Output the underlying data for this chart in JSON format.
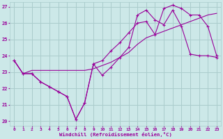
{
  "xlabel": "Windchill (Refroidissement éolien,°C)",
  "bg_color": "#cce8e8",
  "grid_color": "#aacccc",
  "line_color": "#990099",
  "xlim": [
    -0.5,
    23.5
  ],
  "ylim": [
    19.7,
    27.3
  ],
  "yticks": [
    20,
    21,
    22,
    23,
    24,
    25,
    26,
    27
  ],
  "xticks": [
    0,
    1,
    2,
    3,
    4,
    5,
    6,
    7,
    8,
    9,
    10,
    11,
    12,
    13,
    14,
    15,
    16,
    17,
    18,
    19,
    20,
    21,
    22,
    23
  ],
  "curve1_x": [
    0,
    1,
    2,
    3,
    4,
    5,
    6,
    7,
    8,
    9,
    10,
    11,
    12,
    13,
    14,
    15,
    16,
    17,
    18,
    19,
    20,
    21,
    22,
    23
  ],
  "curve1_y": [
    23.7,
    22.9,
    22.9,
    22.4,
    22.1,
    21.8,
    21.5,
    20.1,
    21.1,
    23.5,
    22.8,
    23.3,
    23.9,
    24.5,
    26.5,
    26.8,
    26.2,
    25.9,
    26.8,
    25.8,
    24.1,
    24.0,
    24.0,
    23.9
  ],
  "curve2_x": [
    0,
    1,
    2,
    3,
    4,
    5,
    6,
    7,
    8,
    9,
    10,
    11,
    12,
    13,
    14,
    15,
    16,
    17,
    18,
    19,
    20,
    21,
    22,
    23
  ],
  "curve2_y": [
    23.7,
    22.9,
    23.1,
    23.1,
    23.1,
    23.1,
    23.1,
    23.1,
    23.1,
    23.2,
    23.4,
    23.6,
    23.9,
    24.2,
    24.7,
    25.1,
    25.3,
    25.5,
    25.7,
    25.9,
    26.1,
    26.3,
    26.5,
    26.6
  ],
  "curve3_x": [
    0,
    1,
    2,
    3,
    4,
    5,
    6,
    7,
    8,
    9,
    10,
    11,
    12,
    13,
    14,
    15,
    16,
    17,
    18,
    19,
    20,
    21,
    22,
    23
  ],
  "curve3_y": [
    23.7,
    22.9,
    22.9,
    22.4,
    22.1,
    21.8,
    21.5,
    20.1,
    21.1,
    23.5,
    23.7,
    24.3,
    24.8,
    25.4,
    26.0,
    26.1,
    25.3,
    26.9,
    27.1,
    26.9,
    26.5,
    26.5,
    25.8,
    24.0
  ]
}
